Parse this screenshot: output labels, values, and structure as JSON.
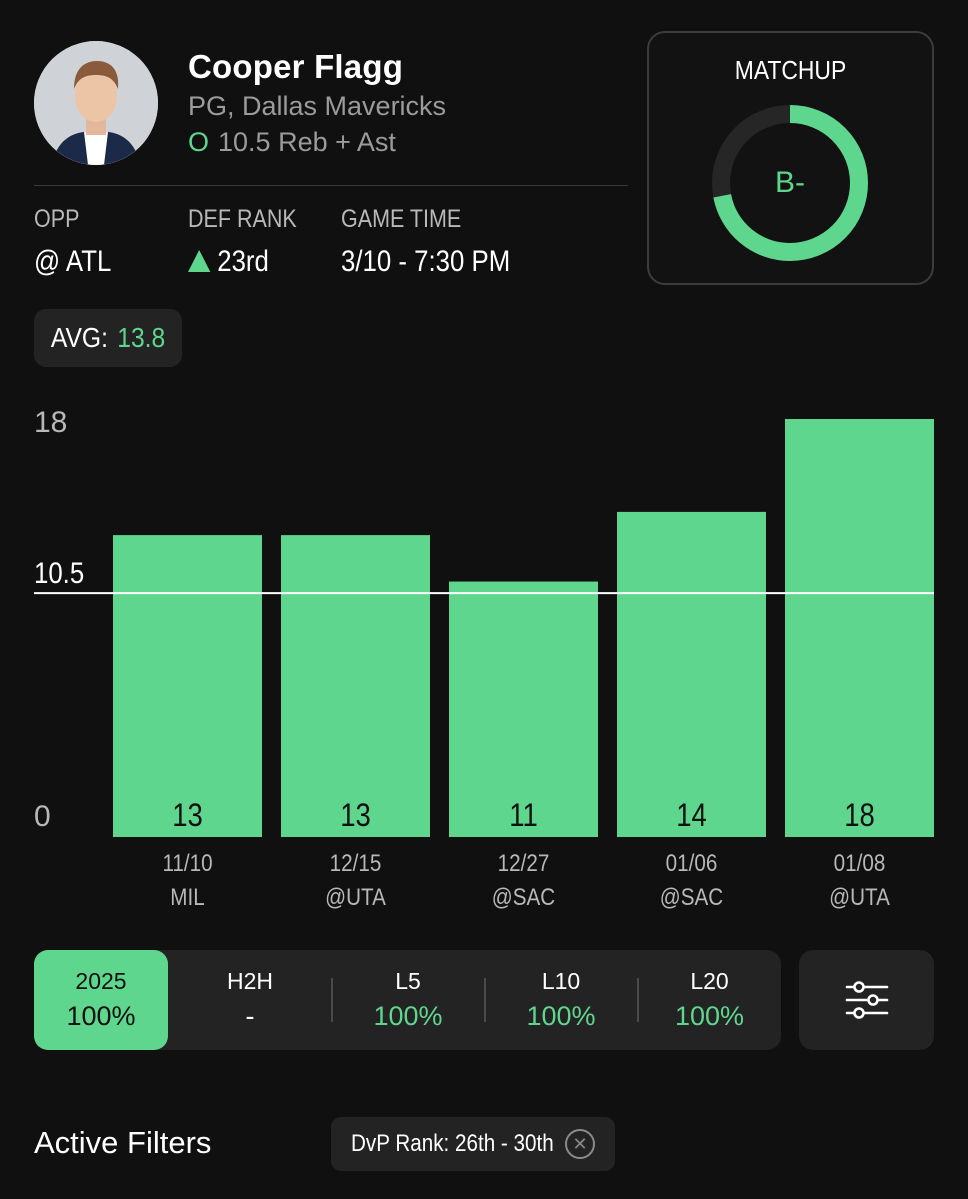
{
  "player": {
    "name": "Cooper Flagg",
    "team": "PG, Dallas Mavericks",
    "ou_symbol": "O",
    "prop": "10.5 Reb + Ast"
  },
  "game_info": {
    "opp_label": "OPP",
    "opp_value": "@ ATL",
    "def_rank_label": "DEF RANK",
    "def_rank_value": "23rd",
    "game_time_label": "GAME TIME",
    "game_time_value": "3/10 - 7:30 PM"
  },
  "matchup": {
    "title": "MATCHUP",
    "grade": "B-",
    "gauge_fill": 0.72
  },
  "avg": {
    "label": "AVG:",
    "value": "13.8"
  },
  "chart_data": {
    "type": "bar",
    "categories": [
      "11/10",
      "12/15",
      "12/27",
      "01/06",
      "01/08"
    ],
    "opponents": [
      "MIL",
      "@UTA",
      "@SAC",
      "@SAC",
      "@UTA"
    ],
    "values": [
      13,
      13,
      11,
      14,
      18
    ],
    "ylim": [
      0,
      18
    ],
    "y_ticks": [
      "18",
      "0"
    ],
    "line_value": 10.5,
    "line_label": "10.5",
    "bar_color": "#5fd68d",
    "line_color": "#ffffff"
  },
  "tabs": [
    {
      "label": "2025",
      "value": "100%"
    },
    {
      "label": "H2H",
      "value": "-"
    },
    {
      "label": "L5",
      "value": "100%"
    },
    {
      "label": "L10",
      "value": "100%"
    },
    {
      "label": "L20",
      "value": "100%"
    }
  ],
  "filter_button": {
    "icon": "sliders-icon"
  },
  "active_filters": {
    "title": "Active Filters",
    "chips": [
      {
        "label": "DvP Rank: 26th - 30th",
        "remove_icon": "close-circle-icon"
      }
    ]
  },
  "colors": {
    "accent": "#5fd68d",
    "background": "#101010",
    "card": "#232323"
  }
}
